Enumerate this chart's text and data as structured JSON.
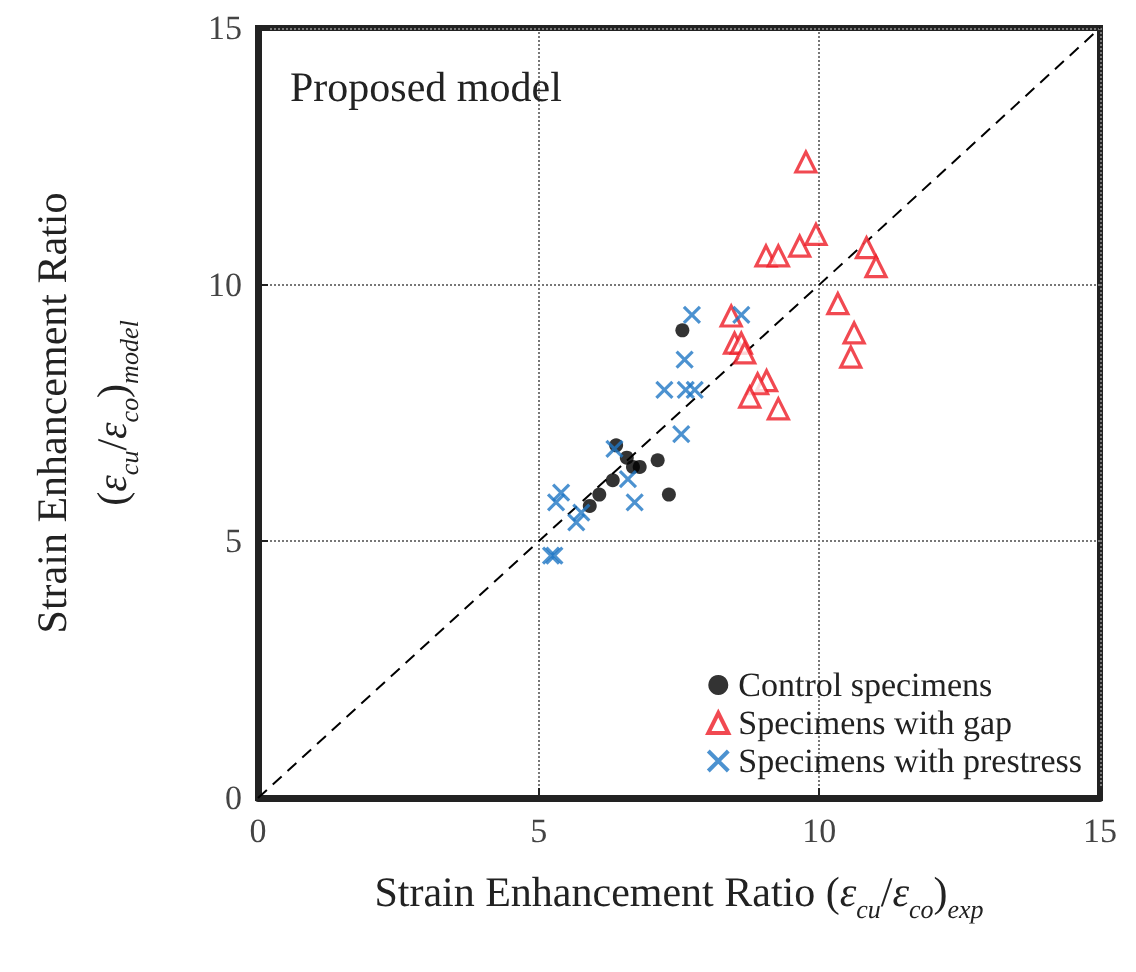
{
  "chart_data": {
    "type": "scatter",
    "title": "Proposed model",
    "xlabel": "Strain Enhancement Ratio (ε$_{cu}$/ε$_{co}$)$_{exp}$",
    "ylabel": "Strain Enhancement Ratio\n(ε$_{cu}$/ε$_{co}$)$_{model}$",
    "xlim": [
      0,
      15
    ],
    "ylim": [
      0,
      15
    ],
    "xticks": [
      0,
      5,
      10,
      15
    ],
    "yticks": [
      0,
      5,
      10,
      15
    ],
    "grid": true,
    "legend": "bottom right",
    "series": [
      {
        "name": "Control specimens",
        "color": "#000000",
        "marker": "circle",
        "x": [
          7.56,
          6.38,
          6.57,
          6.68,
          6.8,
          7.12,
          6.32,
          7.32,
          6.08,
          5.91
        ],
        "values": [
          9.11,
          6.87,
          6.63,
          6.45,
          6.45,
          6.58,
          6.19,
          5.91,
          5.91,
          5.69
        ]
      },
      {
        "name": "Specimens with gap",
        "color": "#ee1c25",
        "marker": "triangle",
        "x": [
          9.76,
          9.05,
          9.27,
          9.65,
          9.94,
          10.84,
          11.01,
          10.33,
          10.62,
          10.56,
          8.43,
          8.49,
          8.61,
          8.67,
          9.06,
          8.9,
          8.76,
          9.27
        ],
        "values": [
          12.39,
          10.56,
          10.56,
          10.75,
          10.98,
          10.72,
          10.35,
          9.63,
          9.06,
          8.59,
          9.39,
          8.86,
          8.86,
          8.67,
          8.13,
          8.07,
          7.81,
          7.58
        ]
      },
      {
        "name": "Specimens with prestress",
        "color": "#1f77c4",
        "marker": "cross",
        "x": [
          7.73,
          8.61,
          7.6,
          7.24,
          7.62,
          7.78,
          7.54,
          6.35,
          6.59,
          6.71,
          5.4,
          5.31,
          5.76,
          5.67,
          5.28,
          5.22
        ],
        "values": [
          9.41,
          9.41,
          8.54,
          7.95,
          7.95,
          7.95,
          7.09,
          6.8,
          6.21,
          5.76,
          5.95,
          5.76,
          5.56,
          5.37,
          4.72,
          4.72
        ]
      },
      {
        "type": "line",
        "color": "#000000",
        "line_style": "dashed",
        "marker": "none",
        "x": [
          0,
          15
        ],
        "values": [
          0,
          15
        ]
      }
    ]
  }
}
